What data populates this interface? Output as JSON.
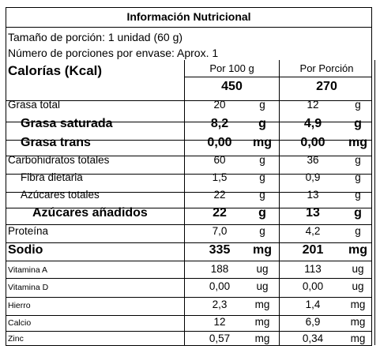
{
  "title": "Información Nutricional",
  "serving_size": "Tamaño de porción: 1 unidad (60 g)",
  "servings_per_container": "Número de porciones por envase: Aprox. 1",
  "calories": {
    "label": "Calorías (Kcal)",
    "per_100g_header": "Por 100 g",
    "per_portion_header": "Por Porción",
    "per_100g": "450",
    "per_portion": "270"
  },
  "nutrients": [
    {
      "name": "Grasa total",
      "v100": "20",
      "u100": "g",
      "vpor": "12",
      "upor": "g"
    },
    {
      "name": "Grasa saturada",
      "v100": "8,2",
      "u100": "g",
      "vpor": "4,9",
      "upor": "g"
    },
    {
      "name": "Grasa trans",
      "v100": "0,00",
      "u100": "mg",
      "vpor": "0,00",
      "upor": "mg"
    },
    {
      "name": "Carbohidratos totales",
      "v100": "60",
      "u100": "g",
      "vpor": "36",
      "upor": "g"
    },
    {
      "name": "Fibra dietaria",
      "v100": "1,5",
      "u100": "g",
      "vpor": "0,9",
      "upor": "g"
    },
    {
      "name": "Azúcares totales",
      "v100": "22",
      "u100": "g",
      "vpor": "13",
      "upor": "g"
    },
    {
      "name": "Azúcares añadidos",
      "v100": "22",
      "u100": "g",
      "vpor": "13",
      "upor": "g"
    },
    {
      "name": "Proteína",
      "v100": "7,0",
      "u100": "g",
      "vpor": "4,2",
      "upor": "g"
    },
    {
      "name": "Sodio",
      "v100": "335",
      "u100": "mg",
      "vpor": "201",
      "upor": "mg"
    },
    {
      "name": "Vitamina A",
      "v100": "188",
      "u100": "ug",
      "vpor": "113",
      "upor": "ug"
    },
    {
      "name": "Vitamina D",
      "v100": "0,00",
      "u100": "ug",
      "vpor": "0,00",
      "upor": "ug"
    },
    {
      "name": "Hierro",
      "v100": "2,3",
      "u100": "mg",
      "vpor": "1,4",
      "upor": "mg"
    },
    {
      "name": "Calcio",
      "v100": "12",
      "u100": "mg",
      "vpor": "6,9",
      "upor": "mg"
    },
    {
      "name": "Zinc",
      "v100": "0,57",
      "u100": "mg",
      "vpor": "0,34",
      "upor": "mg"
    }
  ]
}
